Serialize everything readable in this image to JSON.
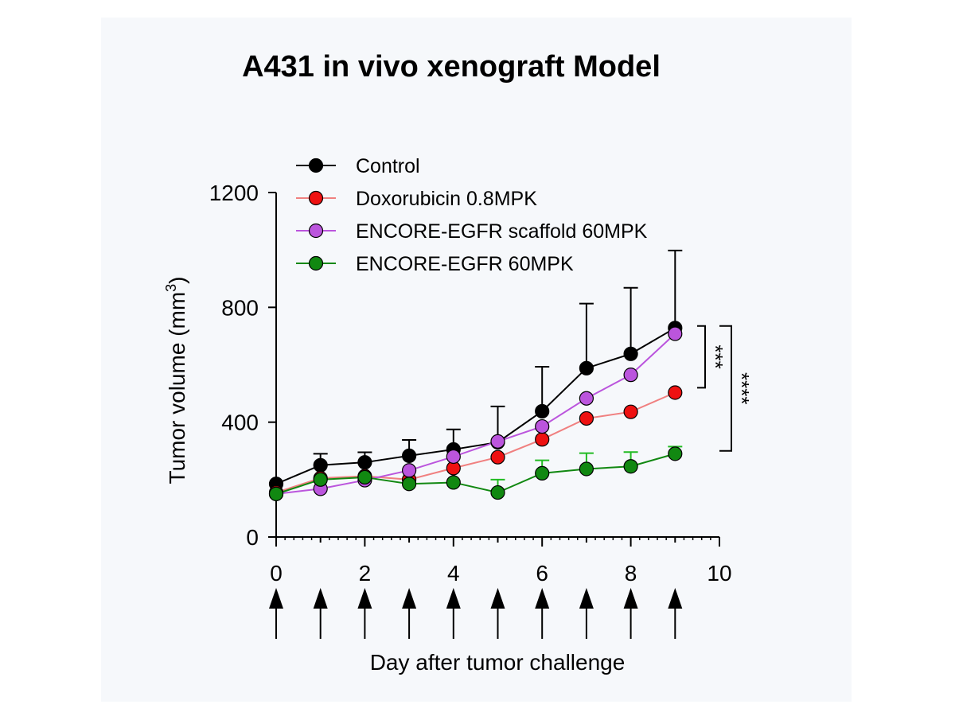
{
  "chart_data": {
    "type": "line",
    "title": "A431 in vivo xenograft Model",
    "xlabel": "Day after tumor challenge",
    "ylabel_main": "Tumor volume (mm",
    "ylabel_sup": "3",
    "ylabel_close": ")",
    "xlim": [
      0,
      10
    ],
    "ylim": [
      0,
      1200
    ],
    "x_ticks": [
      0,
      2,
      4,
      6,
      8,
      10
    ],
    "y_ticks": [
      0,
      400,
      800,
      1200
    ],
    "x": [
      0,
      1,
      2,
      3,
      4,
      5,
      6,
      7,
      8,
      9
    ],
    "dosing_days": [
      0,
      1,
      2,
      3,
      4,
      5,
      6,
      7,
      8,
      9
    ],
    "legend_position": "top-left",
    "series": [
      {
        "name": "Control",
        "color": "#000000",
        "line_color": "#000000",
        "values": [
          185,
          250,
          260,
          283,
          305,
          330,
          438,
          588,
          638,
          728
        ],
        "errors": [
          0,
          40,
          35,
          55,
          70,
          125,
          155,
          225,
          230,
          270
        ]
      },
      {
        "name": "Doxorubicin 0.8MPK",
        "color": "#ee1111",
        "line_color": "#f08080",
        "values": [
          155,
          205,
          212,
          200,
          240,
          278,
          340,
          413,
          436,
          503
        ],
        "errors": [
          0,
          0,
          0,
          0,
          0,
          0,
          0,
          0,
          0,
          0
        ]
      },
      {
        "name": "ENCORE-EGFR scaffold 60MPK",
        "color": "#bb55dd",
        "line_color": "#bb55dd",
        "values": [
          150,
          168,
          198,
          232,
          280,
          333,
          385,
          483,
          565,
          708
        ],
        "errors": [
          0,
          0,
          0,
          0,
          0,
          0,
          0,
          0,
          0,
          0
        ]
      },
      {
        "name": "ENCORE-EGFR 60MPK",
        "color": "#118811",
        "line_color": "#118811",
        "values": [
          150,
          200,
          208,
          185,
          190,
          155,
          222,
          237,
          246,
          290
        ],
        "errors": [
          0,
          0,
          0,
          0,
          0,
          45,
          45,
          55,
          50,
          25
        ]
      }
    ],
    "significance": [
      {
        "label": "***",
        "y_top": 735,
        "y_bottom": 520
      },
      {
        "label": "****",
        "y_top": 735,
        "y_bottom": 300
      }
    ]
  },
  "colors": {
    "panel_background": "#f6f8fb",
    "axis": "#000000",
    "control_error": "#000000",
    "dox_error": "#f08080",
    "scaffold_error": "#bb55dd",
    "egfr_error": "#22bb22"
  }
}
